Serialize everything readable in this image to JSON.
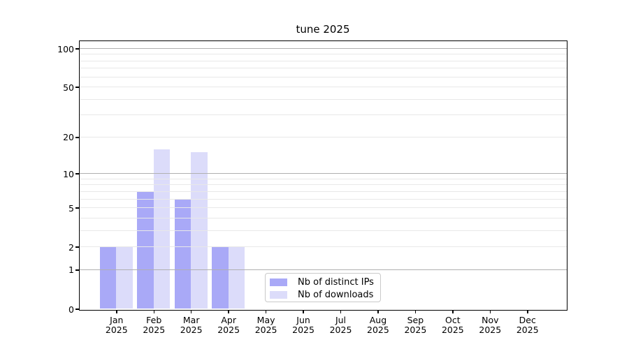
{
  "chart_data": {
    "type": "bar",
    "title": "tune 2025",
    "categories": [
      "Jan 2025",
      "Feb 2025",
      "Mar 2025",
      "Apr 2025",
      "May 2025",
      "Jun 2025",
      "Jul 2025",
      "Aug 2025",
      "Sep 2025",
      "Oct 2025",
      "Nov 2025",
      "Dec 2025"
    ],
    "series": [
      {
        "name": "Nb of distinct IPs",
        "color": "#a9a9f7",
        "values": [
          2,
          7,
          6,
          2,
          0,
          0,
          0,
          0,
          0,
          0,
          0,
          0
        ]
      },
      {
        "name": "Nb of downloads",
        "color": "#dcdcfa",
        "values": [
          2,
          16,
          15,
          2,
          0,
          0,
          0,
          0,
          0,
          0,
          0,
          0
        ]
      }
    ],
    "y_ticks": [
      0,
      1,
      2,
      5,
      10,
      20,
      50,
      100
    ],
    "y_major_gridlines": [
      1,
      10,
      100
    ],
    "y_minor_gridlines": [
      2,
      3,
      4,
      5,
      6,
      7,
      8,
      9,
      20,
      30,
      40,
      50,
      60,
      70,
      80,
      90
    ],
    "y_scale": "log10(1+v) symlog-like, 0 at baseline",
    "ylim": [
      0,
      115
    ],
    "xlabel": "",
    "ylabel": "",
    "grid": "horizontal major and minor, drawn over bars",
    "legend_position": "inside axes, bottom center",
    "colors": {
      "major_grid": "#b0b0b0",
      "minor_grid": "#e8e8e8",
      "axis": "#000000",
      "background": "#ffffff"
    }
  }
}
